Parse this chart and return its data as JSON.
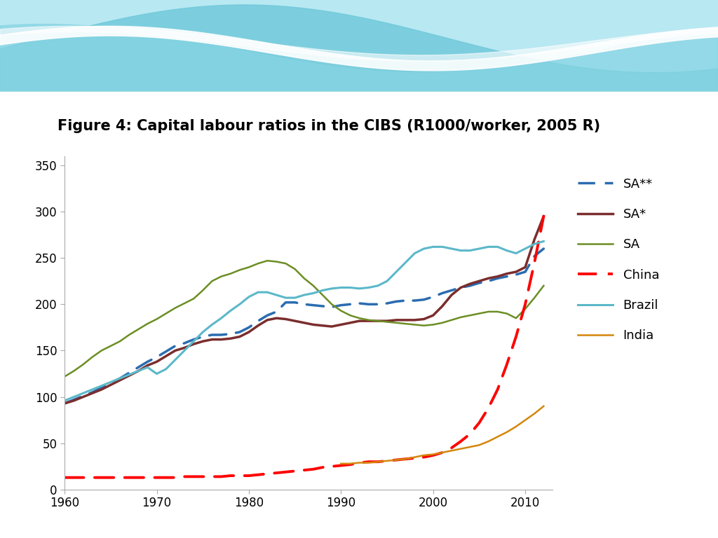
{
  "title": "Figure 4: Capital labour ratios in the CIBS (R1000/worker, 2005 R)",
  "title_fontsize": 15,
  "title_fontweight": "bold",
  "xlim": [
    1960,
    2013
  ],
  "ylim": [
    0,
    360
  ],
  "yticks": [
    0,
    50,
    100,
    150,
    200,
    250,
    300,
    350
  ],
  "xticks": [
    1960,
    1970,
    1980,
    1990,
    2000,
    2010
  ],
  "background_color": "#ffffff",
  "wave_color1": "#7DD8E8",
  "wave_color2": "#A8E6F0",
  "wave_color3": "#C5EEF5",
  "series": {
    "SA**": {
      "color": "#2B6CB0",
      "linestyle": "dashed",
      "linewidth": 2.5,
      "years": [
        1960,
        1961,
        1962,
        1963,
        1964,
        1965,
        1966,
        1967,
        1968,
        1969,
        1970,
        1971,
        1972,
        1973,
        1974,
        1975,
        1976,
        1977,
        1978,
        1979,
        1980,
        1981,
        1982,
        1983,
        1984,
        1985,
        1986,
        1987,
        1988,
        1989,
        1990,
        1991,
        1992,
        1993,
        1994,
        1995,
        1996,
        1997,
        1998,
        1999,
        2000,
        2001,
        2002,
        2003,
        2004,
        2005,
        2006,
        2007,
        2008,
        2009,
        2010,
        2011,
        2012
      ],
      "values": [
        93,
        97,
        101,
        105,
        110,
        115,
        120,
        126,
        132,
        138,
        143,
        149,
        155,
        158,
        162,
        165,
        167,
        167,
        168,
        170,
        175,
        182,
        188,
        192,
        202,
        202,
        200,
        199,
        198,
        197,
        199,
        200,
        201,
        200,
        200,
        201,
        203,
        204,
        204,
        205,
        208,
        212,
        215,
        218,
        220,
        223,
        225,
        228,
        230,
        232,
        235,
        252,
        260
      ]
    },
    "SA*": {
      "color": "#7B2D2D",
      "linestyle": "solid",
      "linewidth": 2.5,
      "years": [
        1960,
        1961,
        1962,
        1963,
        1964,
        1965,
        1966,
        1967,
        1968,
        1969,
        1970,
        1971,
        1972,
        1973,
        1974,
        1975,
        1976,
        1977,
        1978,
        1979,
        1980,
        1981,
        1982,
        1983,
        1984,
        1985,
        1986,
        1987,
        1988,
        1989,
        1990,
        1991,
        1992,
        1993,
        1994,
        1995,
        1996,
        1997,
        1998,
        1999,
        2000,
        2001,
        2002,
        2003,
        2004,
        2005,
        2006,
        2007,
        2008,
        2009,
        2010,
        2011,
        2012
      ],
      "values": [
        93,
        96,
        100,
        104,
        108,
        113,
        118,
        123,
        128,
        134,
        138,
        144,
        150,
        153,
        157,
        160,
        162,
        162,
        163,
        165,
        170,
        177,
        183,
        185,
        184,
        182,
        180,
        178,
        177,
        176,
        178,
        180,
        182,
        182,
        182,
        182,
        183,
        183,
        183,
        184,
        188,
        198,
        210,
        218,
        222,
        225,
        228,
        230,
        233,
        235,
        240,
        270,
        295
      ]
    },
    "SA": {
      "color": "#6B8E23",
      "linestyle": "solid",
      "linewidth": 1.8,
      "years": [
        1960,
        1961,
        1962,
        1963,
        1964,
        1965,
        1966,
        1967,
        1968,
        1969,
        1970,
        1971,
        1972,
        1973,
        1974,
        1975,
        1976,
        1977,
        1978,
        1979,
        1980,
        1981,
        1982,
        1983,
        1984,
        1985,
        1986,
        1987,
        1988,
        1989,
        1990,
        1991,
        1992,
        1993,
        1994,
        1995,
        1996,
        1997,
        1998,
        1999,
        2000,
        2001,
        2002,
        2003,
        2004,
        2005,
        2006,
        2007,
        2008,
        2009,
        2010,
        2011,
        2012
      ],
      "values": [
        122,
        128,
        135,
        143,
        150,
        155,
        160,
        167,
        173,
        179,
        184,
        190,
        196,
        201,
        206,
        215,
        225,
        230,
        233,
        237,
        240,
        244,
        247,
        246,
        244,
        238,
        228,
        220,
        210,
        200,
        193,
        188,
        185,
        183,
        182,
        181,
        180,
        179,
        178,
        177,
        178,
        180,
        183,
        186,
        188,
        190,
        192,
        192,
        190,
        185,
        195,
        207,
        220
      ]
    },
    "China": {
      "color": "#FF0000",
      "linestyle": "dashed",
      "linewidth": 2.8,
      "years": [
        1960,
        1961,
        1962,
        1963,
        1964,
        1965,
        1966,
        1967,
        1968,
        1969,
        1970,
        1971,
        1972,
        1973,
        1974,
        1975,
        1976,
        1977,
        1978,
        1979,
        1980,
        1981,
        1982,
        1983,
        1984,
        1985,
        1986,
        1987,
        1988,
        1989,
        1990,
        1991,
        1992,
        1993,
        1994,
        1995,
        1996,
        1997,
        1998,
        1999,
        2000,
        2001,
        2002,
        2003,
        2004,
        2005,
        2006,
        2007,
        2008,
        2009,
        2010,
        2011,
        2012
      ],
      "values": [
        13,
        13,
        13,
        13,
        13,
        13,
        13,
        13,
        13,
        13,
        13,
        13,
        13,
        14,
        14,
        14,
        14,
        14,
        15,
        15,
        15,
        16,
        17,
        18,
        19,
        20,
        21,
        22,
        24,
        25,
        26,
        27,
        29,
        30,
        30,
        31,
        32,
        33,
        34,
        35,
        37,
        40,
        45,
        52,
        60,
        72,
        88,
        108,
        135,
        165,
        200,
        245,
        295
      ]
    },
    "Brazil": {
      "color": "#5BB8C9",
      "linestyle": "solid",
      "linewidth": 2.2,
      "years": [
        1960,
        1961,
        1962,
        1963,
        1964,
        1965,
        1966,
        1967,
        1968,
        1969,
        1970,
        1971,
        1972,
        1973,
        1974,
        1975,
        1976,
        1977,
        1978,
        1979,
        1980,
        1981,
        1982,
        1983,
        1984,
        1985,
        1986,
        1987,
        1988,
        1989,
        1990,
        1991,
        1992,
        1993,
        1994,
        1995,
        1996,
        1997,
        1998,
        1999,
        2000,
        2001,
        2002,
        2003,
        2004,
        2005,
        2006,
        2007,
        2008,
        2009,
        2010,
        2011,
        2012
      ],
      "values": [
        96,
        100,
        104,
        108,
        112,
        116,
        120,
        124,
        128,
        132,
        125,
        130,
        140,
        150,
        160,
        170,
        178,
        185,
        193,
        200,
        208,
        213,
        213,
        210,
        207,
        207,
        210,
        212,
        215,
        217,
        218,
        218,
        217,
        218,
        220,
        225,
        235,
        245,
        255,
        260,
        262,
        262,
        260,
        258,
        258,
        260,
        262,
        262,
        258,
        255,
        260,
        265,
        268
      ]
    },
    "India": {
      "color": "#D4860B",
      "linestyle": "solid",
      "linewidth": 1.8,
      "years": [
        1990,
        1991,
        1992,
        1993,
        1994,
        1995,
        1996,
        1997,
        1998,
        1999,
        2000,
        2001,
        2002,
        2003,
        2004,
        2005,
        2006,
        2007,
        2008,
        2009,
        2010,
        2011,
        2012
      ],
      "values": [
        28,
        28,
        29,
        29,
        30,
        31,
        32,
        33,
        35,
        37,
        38,
        40,
        42,
        44,
        46,
        48,
        52,
        57,
        62,
        68,
        75,
        82,
        90
      ]
    }
  }
}
